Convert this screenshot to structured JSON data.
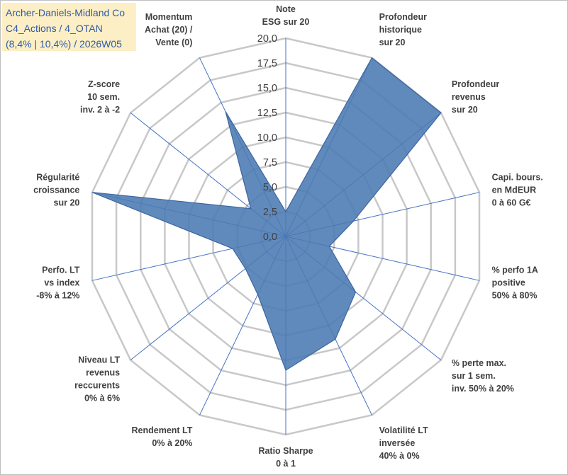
{
  "title_box": {
    "line1": "Archer-Daniels-Midland Co",
    "line2": "C4_Actions / 4_OTAN",
    "line3": "(8,4% | 10,4%) / 2026W05",
    "background": "#fdefc5",
    "text_color": "#2e5aa7"
  },
  "chart_data": {
    "type": "radar",
    "range": [
      0,
      20
    ],
    "tick_step": 2.5,
    "tick_labels": [
      "0,0",
      "2,5",
      "5,0",
      "7,5",
      "10,0",
      "12,5",
      "15,0",
      "17,5",
      "20,0"
    ],
    "axes": [
      {
        "lines": [
          "Note",
          "ESG sur 20"
        ]
      },
      {
        "lines": [
          "Profondeur",
          "historique",
          "sur 20"
        ]
      },
      {
        "lines": [
          "Profondeur",
          "revenus",
          "sur 20"
        ]
      },
      {
        "lines": [
          "Capi. bours.",
          "en MdEUR",
          "0 à 60 G€"
        ]
      },
      {
        "lines": [
          "% perfo 1A",
          "positive",
          "50% à 80%"
        ]
      },
      {
        "lines": [
          "% perte max.",
          "sur 1 sem.",
          "inv. 50% à 20%"
        ]
      },
      {
        "lines": [
          "Volatilité LT",
          "inversée",
          "40% à 0%"
        ]
      },
      {
        "lines": [
          "Ratio Sharpe",
          "0 à 1"
        ]
      },
      {
        "lines": [
          "Rendement LT",
          "0% à 20%"
        ]
      },
      {
        "lines": [
          "Niveau LT",
          "revenus",
          "reccurents",
          "0% à 6%"
        ]
      },
      {
        "lines": [
          "Perfo. LT",
          "vs index",
          "-8% à 12%"
        ]
      },
      {
        "lines": [
          "Régularité",
          "croissance",
          "sur 20"
        ]
      },
      {
        "lines": [
          "Z-score",
          "10 sem.",
          "inv. 2 à -2"
        ]
      },
      {
        "lines": [
          "Momentum",
          "Achat (20) /",
          "Vente (0)"
        ]
      }
    ],
    "series": [
      {
        "name": "Archer-Daniels-Midland Co",
        "values": [
          2.5,
          20,
          20,
          7.0,
          4.5,
          9.0,
          11.5,
          13.5,
          6.5,
          5.2,
          5.5,
          20,
          4.5,
          14.0
        ],
        "fill": "#4a7ab3",
        "stroke": "#3c65a0"
      }
    ],
    "grid_color": "#c8c8c8",
    "spoke_color": "#4472c4"
  }
}
